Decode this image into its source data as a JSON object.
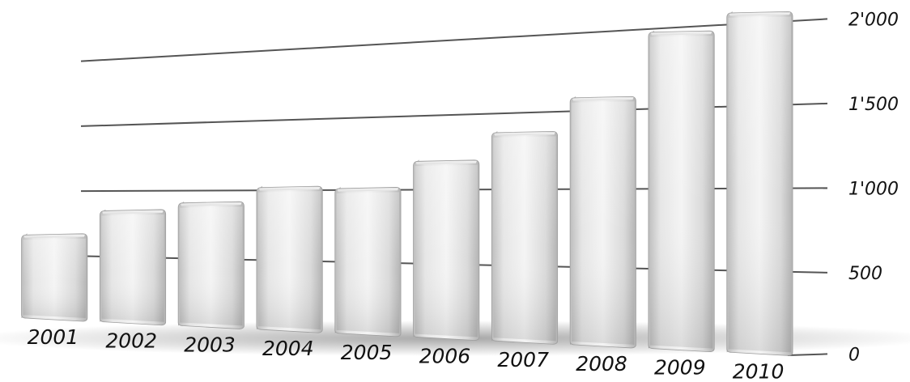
{
  "chart_data": {
    "type": "bar",
    "title": "",
    "xlabel": "",
    "ylabel": "",
    "categories": [
      "2001",
      "2002",
      "2003",
      "2004",
      "2005",
      "2006",
      "2007",
      "2008",
      "2009",
      "2010"
    ],
    "values": [
      660,
      850,
      910,
      1020,
      1010,
      1190,
      1370,
      1580,
      1970,
      2060
    ],
    "ylim": [
      0,
      2000
    ],
    "yticks": [
      {
        "value": 0,
        "label": "0"
      },
      {
        "value": 500,
        "label": "500"
      },
      {
        "value": 1000,
        "label": "1'000"
      },
      {
        "value": 1500,
        "label": "1'500"
      },
      {
        "value": 2000,
        "label": "2'000"
      }
    ],
    "grid": true,
    "legend": "none",
    "style": "3d-metallic-perspective",
    "colors": {
      "bar_light": "#f2f2f2",
      "bar_mid": "#d4d4d4",
      "bar_dark": "#a9a9a9",
      "grid": "#555555",
      "shadow": "#9a9a9a",
      "text": "#111111"
    }
  }
}
